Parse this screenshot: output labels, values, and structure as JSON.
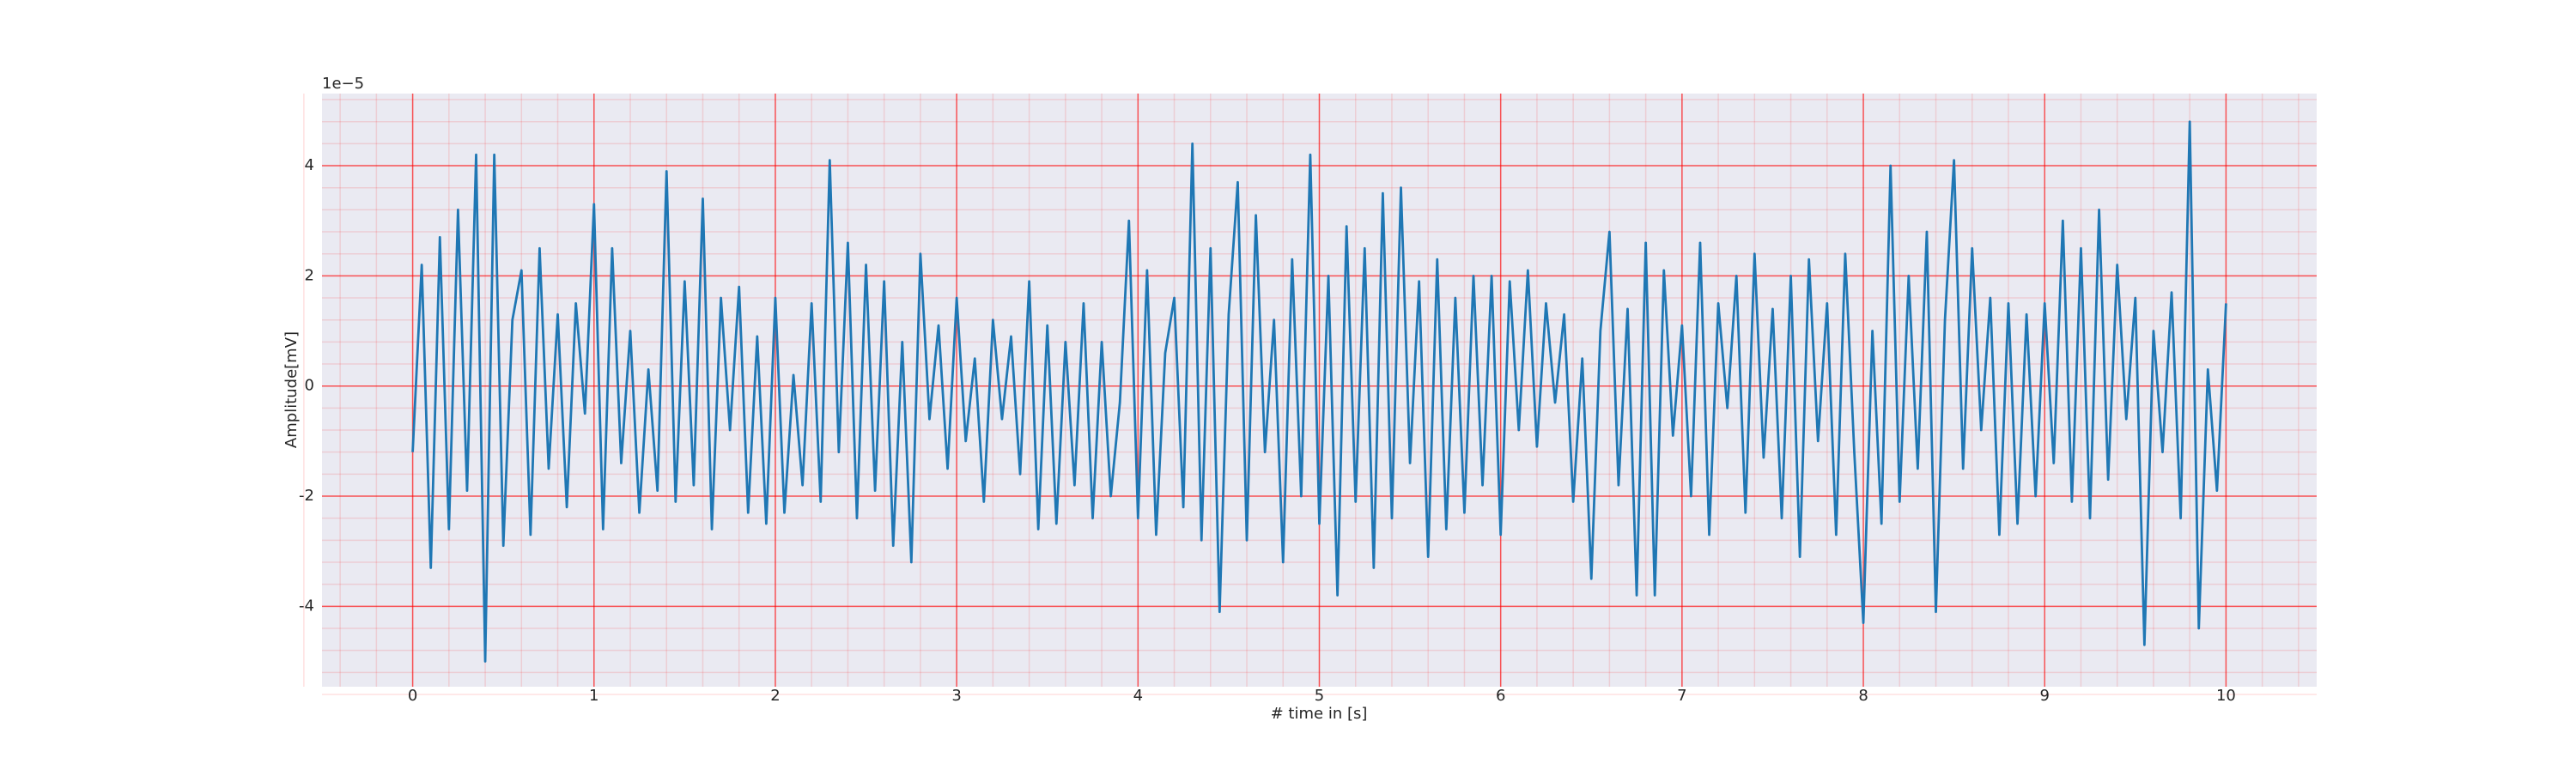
{
  "chart_data": {
    "type": "line",
    "x_label": "# time in [s]",
    "y_label": "Amplitude[mV]",
    "offset_text": "1e−5",
    "color": "#1f77b4",
    "grid": true,
    "grid_color": "#ff0000",
    "minor_grid": true,
    "minor_grid_divisions": 5,
    "xlim": [
      -0.5,
      10.5
    ],
    "ylim": [
      -5.46,
      5.31
    ],
    "xticks": [
      0,
      1,
      2,
      3,
      4,
      5,
      6,
      7,
      8,
      9,
      10
    ],
    "yticks": [
      -4,
      -2,
      0,
      2,
      4
    ],
    "x": [
      0,
      0.05,
      0.1,
      0.15,
      0.2,
      0.25,
      0.3,
      0.35,
      0.4,
      0.45,
      0.5,
      0.55,
      0.6,
      0.65,
      0.7,
      0.75,
      0.8,
      0.85,
      0.9,
      0.95,
      1,
      1.05,
      1.1,
      1.15,
      1.2,
      1.25,
      1.3,
      1.35,
      1.4,
      1.45,
      1.5,
      1.55,
      1.6,
      1.65,
      1.7,
      1.75,
      1.8,
      1.85,
      1.9,
      1.95,
      2,
      2.05,
      2.1,
      2.15,
      2.2,
      2.25,
      2.3,
      2.35,
      2.4,
      2.45,
      2.5,
      2.55,
      2.6,
      2.65,
      2.7,
      2.75,
      2.8,
      2.85,
      2.9,
      2.95,
      3,
      3.05,
      3.1,
      3.15,
      3.2,
      3.25,
      3.3,
      3.35,
      3.4,
      3.45,
      3.5,
      3.55,
      3.6,
      3.65,
      3.7,
      3.75,
      3.8,
      3.85,
      3.9,
      3.95,
      4,
      4.05,
      4.1,
      4.15,
      4.2,
      4.25,
      4.3,
      4.35,
      4.4,
      4.45,
      4.5,
      4.55,
      4.6,
      4.65,
      4.7,
      4.75,
      4.8,
      4.85,
      4.9,
      4.95,
      5,
      5.05,
      5.1,
      5.15,
      5.2,
      5.25,
      5.3,
      5.35,
      5.4,
      5.45,
      5.5,
      5.55,
      5.6,
      5.65,
      5.7,
      5.75,
      5.8,
      5.85,
      5.9,
      5.95,
      6,
      6.05,
      6.1,
      6.15,
      6.2,
      6.25,
      6.3,
      6.35,
      6.4,
      6.45,
      6.5,
      6.55,
      6.6,
      6.65,
      6.7,
      6.75,
      6.8,
      6.85,
      6.9,
      6.95,
      7,
      7.05,
      7.1,
      7.15,
      7.2,
      7.25,
      7.3,
      7.35,
      7.4,
      7.45,
      7.5,
      7.55,
      7.6,
      7.65,
      7.7,
      7.75,
      7.8,
      7.85,
      7.9,
      7.95,
      8,
      8.05,
      8.1,
      8.15,
      8.2,
      8.25,
      8.3,
      8.35,
      8.4,
      8.45,
      8.5,
      8.55,
      8.6,
      8.65,
      8.7,
      8.75,
      8.8,
      8.85,
      8.9,
      8.95,
      9,
      9.05,
      9.1,
      9.15,
      9.2,
      9.25,
      9.3,
      9.35,
      9.4,
      9.45,
      9.5,
      9.55,
      9.6,
      9.65,
      9.7,
      9.75,
      9.8,
      9.85,
      9.9,
      9.95,
      10
    ],
    "values": [
      -1.2,
      2.2,
      -3.3,
      2.7,
      -2.6,
      3.2,
      -1.9,
      4.2,
      -5.0,
      4.2,
      -2.9,
      1.2,
      2.1,
      -2.7,
      2.5,
      -1.5,
      1.3,
      -2.2,
      1.5,
      -0.5,
      3.3,
      -2.6,
      2.5,
      -1.4,
      1.0,
      -2.3,
      0.3,
      -1.9,
      3.9,
      -2.1,
      1.9,
      -1.8,
      3.4,
      -2.6,
      1.6,
      -0.8,
      1.8,
      -2.3,
      0.9,
      -2.5,
      1.6,
      -2.3,
      0.2,
      -1.8,
      1.5,
      -2.1,
      4.1,
      -1.2,
      2.6,
      -2.4,
      2.2,
      -1.9,
      1.9,
      -2.9,
      0.8,
      -3.2,
      2.4,
      -0.6,
      1.1,
      -1.5,
      1.6,
      -1.0,
      0.5,
      -2.1,
      1.2,
      -0.6,
      0.9,
      -1.6,
      1.9,
      -2.6,
      1.1,
      -2.5,
      0.8,
      -1.8,
      1.5,
      -2.4,
      0.8,
      -2.0,
      -0.3,
      3.0,
      -2.4,
      2.1,
      -2.7,
      0.6,
      1.6,
      -2.2,
      4.4,
      -2.8,
      2.5,
      -4.1,
      1.3,
      3.7,
      -2.8,
      3.1,
      -1.2,
      1.2,
      -3.2,
      2.3,
      -2.0,
      4.2,
      -2.5,
      2.0,
      -3.8,
      2.9,
      -2.1,
      2.5,
      -3.3,
      3.5,
      -2.4,
      3.6,
      -1.4,
      1.9,
      -3.1,
      2.3,
      -2.6,
      1.6,
      -2.3,
      2.0,
      -1.8,
      2.0,
      -2.7,
      1.9,
      -0.8,
      2.1,
      -1.1,
      1.5,
      -0.3,
      1.3,
      -2.1,
      0.5,
      -3.5,
      1.0,
      2.8,
      -1.8,
      1.4,
      -3.8,
      2.6,
      -3.8,
      2.1,
      -0.9,
      1.1,
      -2.0,
      2.6,
      -2.7,
      1.5,
      -0.4,
      2.0,
      -2.3,
      2.4,
      -1.3,
      1.4,
      -2.4,
      2.0,
      -3.1,
      2.3,
      -1.0,
      1.5,
      -2.7,
      2.4,
      -1.2,
      -4.3,
      1.0,
      -2.5,
      4.0,
      -2.1,
      2.0,
      -1.5,
      2.8,
      -4.1,
      1.2,
      4.1,
      -1.5,
      2.5,
      -0.8,
      1.6,
      -2.7,
      1.5,
      -2.5,
      1.3,
      -2.0,
      1.5,
      -1.4,
      3.0,
      -2.1,
      2.5,
      -2.4,
      3.2,
      -1.7,
      2.2,
      -0.6,
      1.6,
      -4.7,
      1.0,
      -1.2,
      1.7,
      -2.4,
      4.8,
      -4.4,
      0.3,
      -1.9,
      1.5
    ]
  }
}
